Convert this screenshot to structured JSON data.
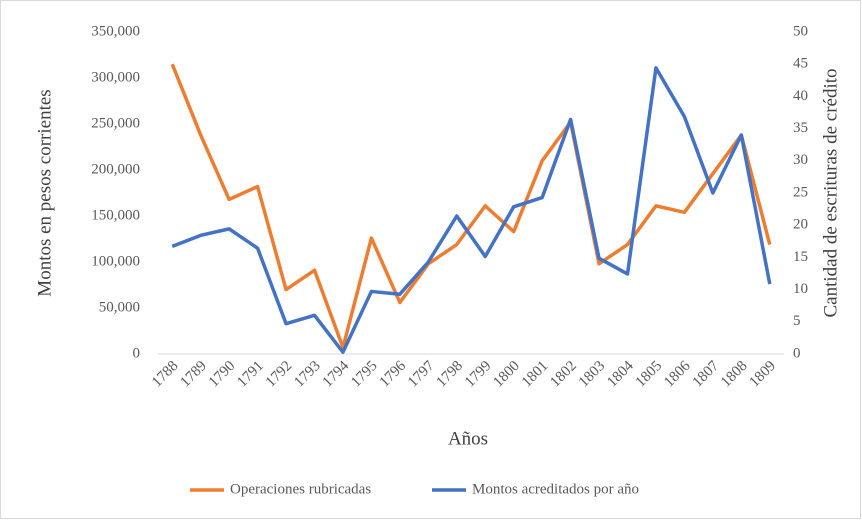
{
  "chart_data": {
    "type": "line",
    "x_label": "Años",
    "y_label": "Montos en  pesos corrientes",
    "y2_label": "Cantidad de escrituras de crédito",
    "categories": [
      "1788",
      "1789",
      "1790",
      "1791",
      "1792",
      "1793",
      "1794",
      "1795",
      "1796",
      "1797",
      "1798",
      "1799",
      "1800",
      "1801",
      "1802",
      "1803",
      "1804",
      "1805",
      "1806",
      "1807",
      "1808",
      "1809"
    ],
    "series": [
      {
        "name": "Operaciones rubricadas",
        "color": "#ed7d31",
        "axis": "y2",
        "values": [
          45,
          34,
          24,
          26,
          10,
          13,
          1,
          18,
          8,
          14,
          17,
          23,
          19,
          30,
          36,
          14,
          17,
          23,
          22,
          28,
          34,
          17
        ]
      },
      {
        "name": "Montos acreditados por año",
        "color": "#4472c4",
        "values": [
          117000,
          129000,
          136000,
          115000,
          33000,
          42000,
          2000,
          68000,
          65000,
          100000,
          150000,
          106000,
          160000,
          170000,
          255000,
          104000,
          87000,
          311000,
          258000,
          175000,
          238000,
          76000
        ]
      }
    ],
    "ylim": [
      0,
      350000
    ],
    "yticks": [
      0,
      {
        "value": 50000,
        "label": "50,000"
      },
      {
        "value": 100000,
        "label": "100,000"
      },
      {
        "value": 150000,
        "label": "150,000"
      },
      {
        "value": 200000,
        "label": "200,000"
      },
      {
        "value": 250000,
        "label": "250,000"
      },
      {
        "value": 300000,
        "label": "300,000"
      },
      {
        "value": 350000,
        "label": "350,000"
      }
    ],
    "y2lim": [
      0,
      50
    ],
    "y2ticks": [
      0,
      5,
      10,
      15,
      20,
      25,
      30,
      35,
      40,
      45,
      50
    ],
    "legend": "bottom"
  }
}
